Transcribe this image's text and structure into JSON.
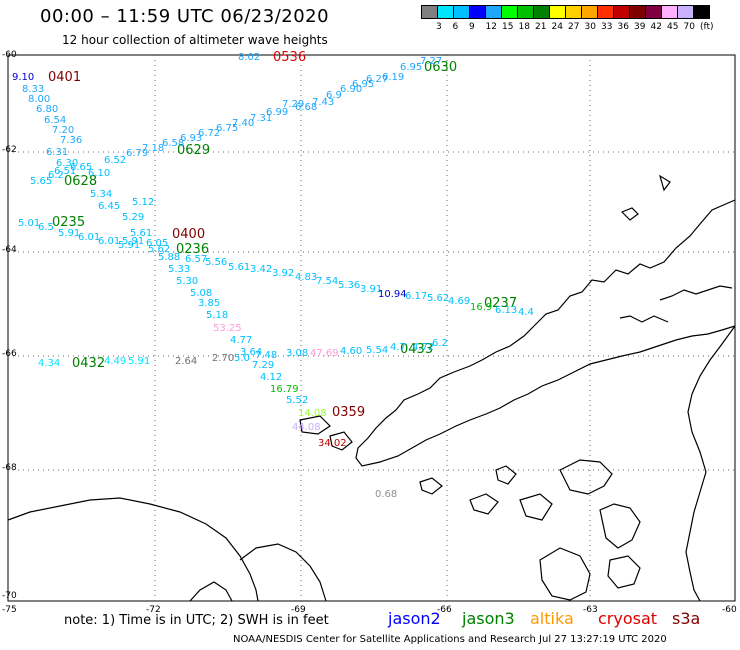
{
  "header": {
    "title": "00:00 – 11:59 UTC 06/23/2020",
    "subtitle": "12 hour collection of altimeter wave heights"
  },
  "scale": {
    "colors": [
      "#808080",
      "#00e5ff",
      "#00bfff",
      "#0000ff",
      "#1ea7ff",
      "#00ff00",
      "#00c000",
      "#008000",
      "#ffff00",
      "#ffd000",
      "#ffa500",
      "#ff3000",
      "#c00000",
      "#800000",
      "#800040",
      "#ffb0ff",
      "#c8b0ff",
      "#000000"
    ],
    "labels": [
      "3",
      "6",
      "9",
      "12",
      "15",
      "18",
      "21",
      "24",
      "27",
      "30",
      "33",
      "36",
      "39",
      "42",
      "45",
      "70",
      "(ft)"
    ]
  },
  "axes": {
    "lat_labels": [
      "-60",
      "-62",
      "-64",
      "-66",
      "-68",
      "-70"
    ],
    "lon_labels": [
      "-75",
      "-72",
      "-69",
      "-66",
      "-63",
      "-60"
    ]
  },
  "tracks": [
    {
      "label": "0401",
      "color": "#800000"
    },
    {
      "label": "0536",
      "color": "#e00000"
    },
    {
      "label": "0630",
      "color": "#008000"
    },
    {
      "label": "0629",
      "color": "#008000"
    },
    {
      "label": "0628",
      "color": "#008000"
    },
    {
      "label": "0235",
      "color": "#008000"
    },
    {
      "label": "0400",
      "color": "#800000"
    },
    {
      "label": "0236",
      "color": "#008000"
    },
    {
      "label": "0237",
      "color": "#008000"
    },
    {
      "label": "0432",
      "color": "#008000"
    },
    {
      "label": "0433",
      "color": "#008000"
    },
    {
      "label": "0359",
      "color": "#800000"
    }
  ],
  "values": [
    {
      "t": "9.10",
      "c": "#0000cc"
    },
    {
      "t": "8.33",
      "c": "#1ea7ff"
    },
    {
      "t": "8.00",
      "c": "#1ea7ff"
    },
    {
      "t": "6.80",
      "c": "#1ea7ff"
    },
    {
      "t": "6.54",
      "c": "#1ea7ff"
    },
    {
      "t": "7.20",
      "c": "#1ea7ff"
    },
    {
      "t": "7.36",
      "c": "#1ea7ff"
    },
    {
      "t": "6.31",
      "c": "#1ea7ff"
    },
    {
      "t": "6.30",
      "c": "#00bfff"
    },
    {
      "t": "6.52",
      "c": "#00bfff"
    },
    {
      "t": "6.65",
      "c": "#00bfff"
    },
    {
      "t": "6.51",
      "c": "#00bfff"
    },
    {
      "t": "6.10",
      "c": "#00bfff"
    },
    {
      "t": "6.2",
      "c": "#00bfff"
    },
    {
      "t": "5.65",
      "c": "#00bfff"
    },
    {
      "t": "5.34",
      "c": "#00bfff"
    },
    {
      "t": "6.45",
      "c": "#00bfff"
    },
    {
      "t": "5.29",
      "c": "#00bfff"
    },
    {
      "t": "5.12",
      "c": "#00bfff"
    },
    {
      "t": "5.01",
      "c": "#00bfff"
    },
    {
      "t": "6.5",
      "c": "#00bfff"
    },
    {
      "t": "5.91",
      "c": "#00bfff"
    },
    {
      "t": "6.01",
      "c": "#00bfff"
    },
    {
      "t": "6.01",
      "c": "#00bfff"
    },
    {
      "t": "5.91",
      "c": "#00bfff"
    },
    {
      "t": "5.91",
      "c": "#00bfff"
    },
    {
      "t": "6.05",
      "c": "#00bfff"
    },
    {
      "t": "5.61",
      "c": "#00bfff"
    },
    {
      "t": "5.62",
      "c": "#00bfff"
    },
    {
      "t": "5.88",
      "c": "#00bfff"
    },
    {
      "t": "5.33",
      "c": "#00bfff"
    },
    {
      "t": "6.57",
      "c": "#00bfff"
    },
    {
      "t": "5.56",
      "c": "#00bfff"
    },
    {
      "t": "5.61",
      "c": "#00bfff"
    },
    {
      "t": "3.42",
      "c": "#00bfff"
    },
    {
      "t": "3.92",
      "c": "#00bfff"
    },
    {
      "t": "4.83",
      "c": "#00bfff"
    },
    {
      "t": "7.54",
      "c": "#00bfff"
    },
    {
      "t": "5.36",
      "c": "#00bfff"
    },
    {
      "t": "3.91",
      "c": "#00bfff"
    },
    {
      "t": "10.94",
      "c": "#0000cc"
    },
    {
      "t": "6.17",
      "c": "#00bfff"
    },
    {
      "t": "5.62",
      "c": "#00bfff"
    },
    {
      "t": "4.69",
      "c": "#00bfff"
    },
    {
      "t": "16.9",
      "c": "#00c000"
    },
    {
      "t": "6.13",
      "c": "#00bfff"
    },
    {
      "t": "4.4",
      "c": "#00bfff"
    },
    {
      "t": "5.30",
      "c": "#00bfff"
    },
    {
      "t": "5.08",
      "c": "#00bfff"
    },
    {
      "t": "3.85",
      "c": "#00bfff"
    },
    {
      "t": "5.18",
      "c": "#00bfff"
    },
    {
      "t": "53.25",
      "c": "#ff99dd"
    },
    {
      "t": "4.77",
      "c": "#00bfff"
    },
    {
      "t": "3.64",
      "c": "#00bfff"
    },
    {
      "t": "2.70",
      "c": "#707070"
    },
    {
      "t": "5.0",
      "c": "#00bfff"
    },
    {
      "t": "7.48",
      "c": "#00bfff"
    },
    {
      "t": "3.08",
      "c": "#00bfff"
    },
    {
      "t": "47.69",
      "c": "#ff99dd"
    },
    {
      "t": "4.60",
      "c": "#00bfff"
    },
    {
      "t": "5.54",
      "c": "#00bfff"
    },
    {
      "t": "4.7",
      "c": "#00bfff"
    },
    {
      "t": "4.72",
      "c": "#00bfff"
    },
    {
      "t": "6.2",
      "c": "#00bfff"
    },
    {
      "t": "4.34",
      "c": "#00e5ff"
    },
    {
      "t": "4.49",
      "c": "#00e5ff"
    },
    {
      "t": "5.91",
      "c": "#00e5ff"
    },
    {
      "t": "2.64",
      "c": "#707070"
    },
    {
      "t": "7.29",
      "c": "#00bfff"
    },
    {
      "t": "4.12",
      "c": "#00bfff"
    },
    {
      "t": "16.79",
      "c": "#00c000"
    },
    {
      "t": "5.52",
      "c": "#00bfff"
    },
    {
      "t": "14.08",
      "c": "#99ff33"
    },
    {
      "t": "44.08",
      "c": "#c8b0ff"
    },
    {
      "t": "34.02",
      "c": "#c00000"
    },
    {
      "t": "0.68",
      "c": "#909090"
    },
    {
      "t": "8.02",
      "c": "#1ea7ff"
    },
    {
      "t": "7.27",
      "c": "#1ea7ff"
    },
    {
      "t": "6.95",
      "c": "#1ea7ff"
    },
    {
      "t": "6.19",
      "c": "#1ea7ff"
    },
    {
      "t": "6.27",
      "c": "#1ea7ff"
    },
    {
      "t": "6.95",
      "c": "#1ea7ff"
    },
    {
      "t": "6.90",
      "c": "#1ea7ff"
    },
    {
      "t": "6.9",
      "c": "#1ea7ff"
    },
    {
      "t": "7.43",
      "c": "#1ea7ff"
    },
    {
      "t": "6.68",
      "c": "#1ea7ff"
    },
    {
      "t": "7.29",
      "c": "#1ea7ff"
    },
    {
      "t": "6.99",
      "c": "#1ea7ff"
    },
    {
      "t": "7.31",
      "c": "#1ea7ff"
    },
    {
      "t": "7.40",
      "c": "#1ea7ff"
    },
    {
      "t": "6.75",
      "c": "#1ea7ff"
    },
    {
      "t": "6.72",
      "c": "#1ea7ff"
    },
    {
      "t": "6.93",
      "c": "#1ea7ff"
    },
    {
      "t": "6.58",
      "c": "#1ea7ff"
    },
    {
      "t": "7.18",
      "c": "#1ea7ff"
    },
    {
      "t": "6.79",
      "c": "#1ea7ff"
    }
  ],
  "footer": {
    "note": "note: 1) Time is in UTC; 2) SWH is in feet",
    "satellites": [
      {
        "name": "jason2",
        "color": "#0000ff"
      },
      {
        "name": "jason3",
        "color": "#008000"
      },
      {
        "name": "altika",
        "color": "#ff9900"
      },
      {
        "name": "cryosat",
        "color": "#e00000"
      },
      {
        "name": "s3a",
        "color": "#800000"
      }
    ],
    "credit": "NOAA/NESDIS Center for Satellite Applications and Research    Jul 27 13:27:19 UTC 2020"
  }
}
